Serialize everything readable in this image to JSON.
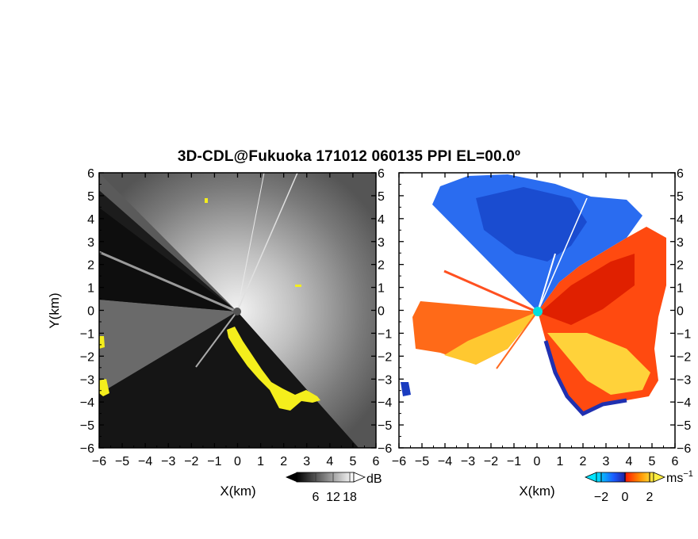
{
  "title": "3D-CDL@Fukuoka 171012 060135 PPI EL=00.0º",
  "chart_data": [
    {
      "type": "heatmap",
      "panel": "left",
      "quantity": "intensity",
      "xlabel": "X(km)",
      "ylabel": "Y(km)",
      "xlim": [
        -6,
        6
      ],
      "ylim": [
        -6,
        6
      ],
      "xticks": [
        "-6",
        "-5",
        "-4",
        "-3",
        "-2",
        "-1",
        "0",
        "1",
        "2",
        "3",
        "4",
        "5",
        "6"
      ],
      "yticks": [
        "-6",
        "-5",
        "-4",
        "-3",
        "-2",
        "-1",
        "0",
        "1",
        "2",
        "3",
        "4",
        "5",
        "6"
      ],
      "colorbar": {
        "unit": "dB",
        "ticks": [
          "6",
          "12",
          "18"
        ],
        "colormap": "grayscale",
        "highlight_color": "#f4ee1c"
      }
    },
    {
      "type": "heatmap",
      "panel": "right",
      "quantity": "velocity",
      "xlabel": "X(km)",
      "xlim": [
        -6,
        6
      ],
      "ylim": [
        -6,
        6
      ],
      "xticks": [
        "-6",
        "-5",
        "-4",
        "-3",
        "-2",
        "-1",
        "0",
        "1",
        "2",
        "3",
        "4",
        "5",
        "6"
      ],
      "yticks": [
        "-6",
        "-5",
        "-4",
        "-3",
        "-2",
        "-1",
        "0",
        "1",
        "2",
        "3",
        "4",
        "5",
        "6"
      ],
      "colorbar": {
        "unit": "ms",
        "unit_exp": "−1",
        "ticks": [
          "−2",
          "0",
          "2"
        ],
        "colormap": [
          "#00e5ff",
          "#1a5cff",
          "#2020a0",
          "#ff2000",
          "#ff8c00",
          "#ffee40"
        ]
      }
    }
  ]
}
